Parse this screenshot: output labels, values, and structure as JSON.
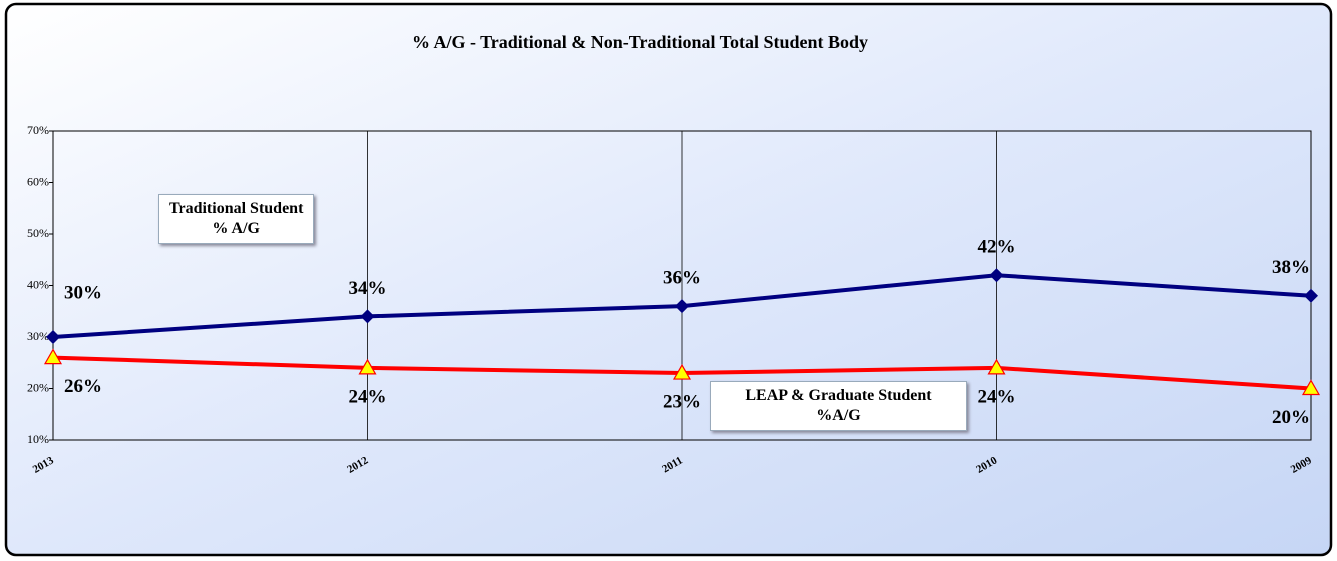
{
  "chart_data": {
    "type": "line",
    "title": "% A/G - Traditional & Non-Traditional Total Student Body",
    "categories": [
      "2013",
      "2012",
      "2011",
      "2010",
      "2009"
    ],
    "series": [
      {
        "name": "Traditional Student\n% A/G",
        "color": "#000080",
        "marker": "diamond",
        "values": [
          30,
          34,
          36,
          42,
          38
        ],
        "value_labels": [
          "30%",
          "34%",
          "36%",
          "42%",
          "38%"
        ]
      },
      {
        "name": "LEAP & Graduate Student\n%A/G",
        "color": "#ff0000",
        "marker": "triangle",
        "values": [
          26,
          24,
          23,
          24,
          20
        ],
        "value_labels": [
          "26%",
          "24%",
          "23%",
          "24%",
          "20%"
        ]
      }
    ],
    "ylim": [
      10,
      70
    ],
    "yticks": [
      {
        "value": 10,
        "label": "10%"
      },
      {
        "value": 20,
        "label": "20%"
      },
      {
        "value": 30,
        "label": "30%"
      },
      {
        "value": 40,
        "label": "40%"
      },
      {
        "value": 50,
        "label": "50%"
      },
      {
        "value": 60,
        "label": "60%"
      },
      {
        "value": 70,
        "label": "70%"
      }
    ],
    "grid": "vertical"
  }
}
